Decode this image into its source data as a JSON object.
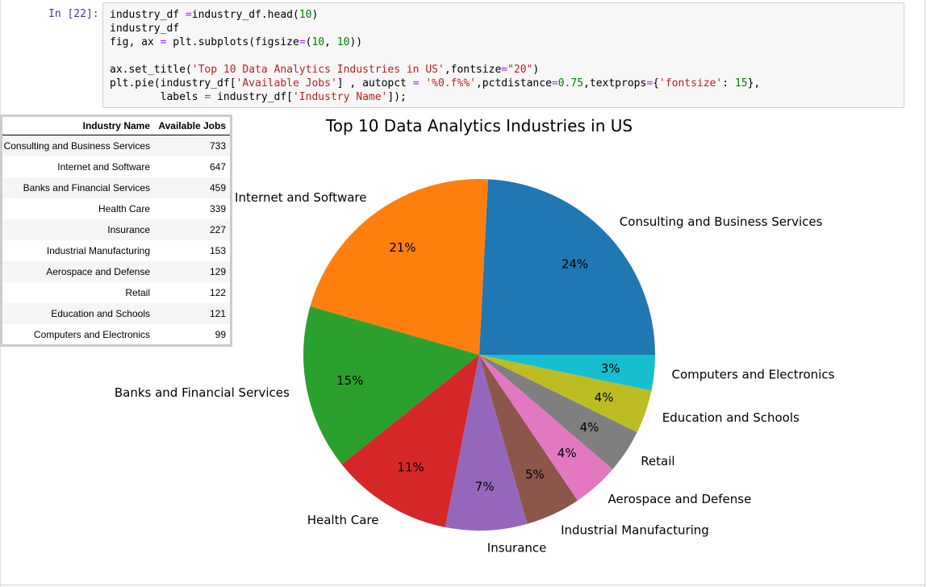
{
  "cell": {
    "prompt": "In [22]:",
    "code_lines": [
      "industry_df =industry_df.head(10)",
      "industry_df",
      "fig, ax = plt.subplots(figsize=(10, 10))",
      "",
      "ax.set_title('Top 10 Data Analytics Industries in US',fontsize=\"20\")",
      "plt.pie(industry_df['Available Jobs'] , autopct = '%0.f%%',pctdistance=0.75,textprops={'fontsize': 15},",
      "        labels = industry_df['Industry Name']);"
    ]
  },
  "table": {
    "columns": [
      "Industry Name",
      "Available Jobs"
    ],
    "rows": [
      [
        "Consulting and Business Services",
        "733"
      ],
      [
        "Internet and Software",
        "647"
      ],
      [
        "Banks and Financial Services",
        "459"
      ],
      [
        "Health Care",
        "339"
      ],
      [
        "Insurance",
        "227"
      ],
      [
        "Industrial Manufacturing",
        "153"
      ],
      [
        "Aerospace and Defense",
        "129"
      ],
      [
        "Retail",
        "122"
      ],
      [
        "Education and Schools",
        "121"
      ],
      [
        "Computers and Electronics",
        "99"
      ]
    ]
  },
  "chart_data": {
    "type": "pie",
    "title": "Top 10 Data Analytics Industries in US",
    "categories": [
      "Consulting and Business Services",
      "Internet and Software",
      "Banks and Financial Services",
      "Health Care",
      "Insurance",
      "Industrial Manufacturing",
      "Aerospace and Defense",
      "Retail",
      "Education and Schools",
      "Computers and Electronics"
    ],
    "values": [
      733,
      647,
      459,
      339,
      227,
      153,
      129,
      122,
      121,
      99
    ],
    "percent_labels": [
      "24%",
      "21%",
      "15%",
      "11%",
      "7%",
      "5%",
      "4%",
      "4%",
      "4%",
      "3%"
    ],
    "colors": [
      "#1f77b4",
      "#ff7f0e",
      "#2ca02c",
      "#d62728",
      "#9467bd",
      "#8c564b",
      "#e377c2",
      "#7f7f7f",
      "#bcbd22",
      "#17becf"
    ],
    "start_angle_deg": 0,
    "direction": "counterclockwise",
    "legend": "none"
  }
}
